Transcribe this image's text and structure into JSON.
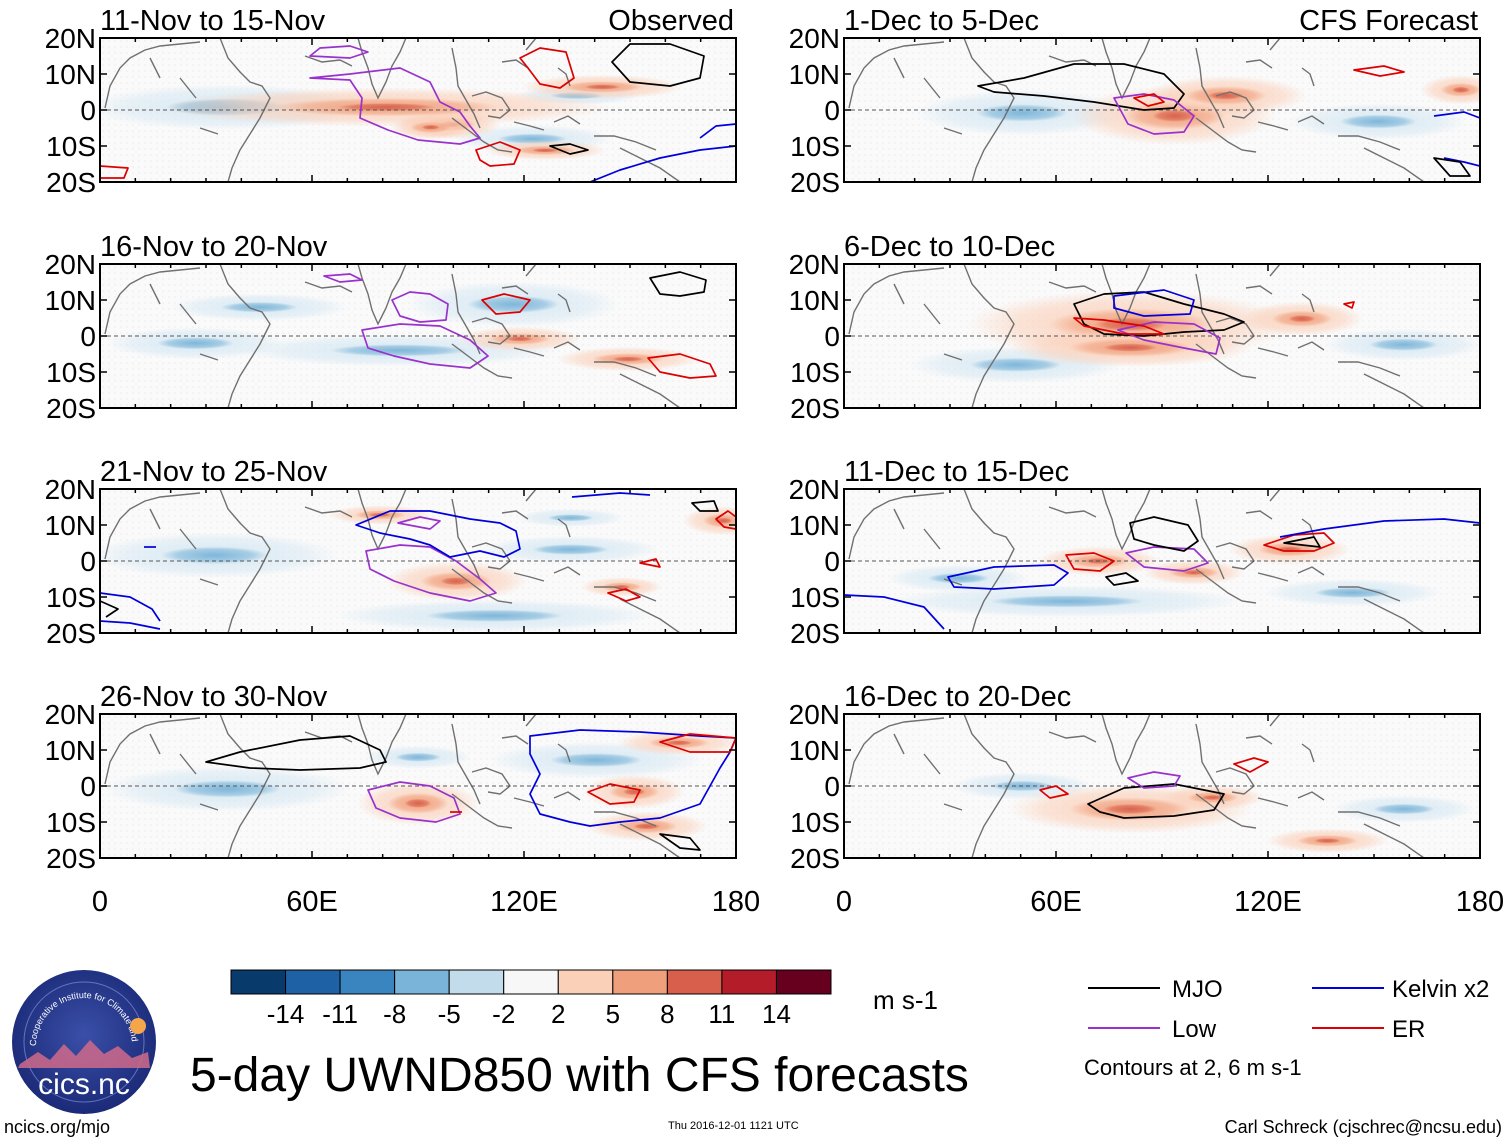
{
  "figure": {
    "title": "5-day UWND850 with CFS forecasts",
    "units": "m s-1",
    "website": "ncics.org/mjo",
    "timestamp": "Thu 2016-12-01 1121 UTC",
    "credit": "Carl Schreck (cjschrec@ncsu.edu)",
    "logo_text": "cics.nc",
    "logo_ring_text": "Cooperative Institute for Climate and Satellites"
  },
  "chart_data": {
    "type": "heatmap",
    "variable": "850-hPa zonal wind anomaly (5-day mean)",
    "x_axis": {
      "range": [
        0,
        180
      ],
      "ticks": [
        0,
        60,
        120,
        180
      ],
      "tick_labels": [
        "0",
        "60E",
        "120E",
        "180"
      ]
    },
    "y_axis": {
      "range": [
        -20,
        20
      ],
      "ticks": [
        20,
        10,
        0,
        -10,
        -20
      ],
      "tick_labels": [
        "20N",
        "10N",
        "0",
        "10S",
        "20S"
      ]
    },
    "columns": [
      {
        "heading": "Observed",
        "panels": [
          "11-Nov to 15-Nov",
          "16-Nov to 20-Nov",
          "21-Nov to 25-Nov",
          "26-Nov to 30-Nov"
        ]
      },
      {
        "heading": "CFS Forecast",
        "panels": [
          "1-Dec to 5-Dec",
          "6-Dec to 10-Dec",
          "11-Dec to 15-Dec",
          "16-Dec to 20-Dec"
        ]
      }
    ],
    "colorbar": {
      "levels": [
        -14,
        -11,
        -8,
        -5,
        -2,
        2,
        5,
        8,
        11,
        14
      ],
      "colors": [
        "#083a6b",
        "#1e61a4",
        "#3a84c0",
        "#7ab4d8",
        "#c3dcec",
        "#f7f7f7",
        "#fbd0b9",
        "#f09f7c",
        "#d85f4c",
        "#b41c2a",
        "#67001f"
      ]
    },
    "contour_legend": [
      {
        "name": "MJO",
        "color": "#000000"
      },
      {
        "name": "Kelvin x2",
        "color": "#0000dd"
      },
      {
        "name": "Low",
        "color": "#9932cc"
      },
      {
        "name": "ER",
        "color": "#dd0000"
      }
    ],
    "contour_note": "Contours at 2, 6 m s-1"
  }
}
